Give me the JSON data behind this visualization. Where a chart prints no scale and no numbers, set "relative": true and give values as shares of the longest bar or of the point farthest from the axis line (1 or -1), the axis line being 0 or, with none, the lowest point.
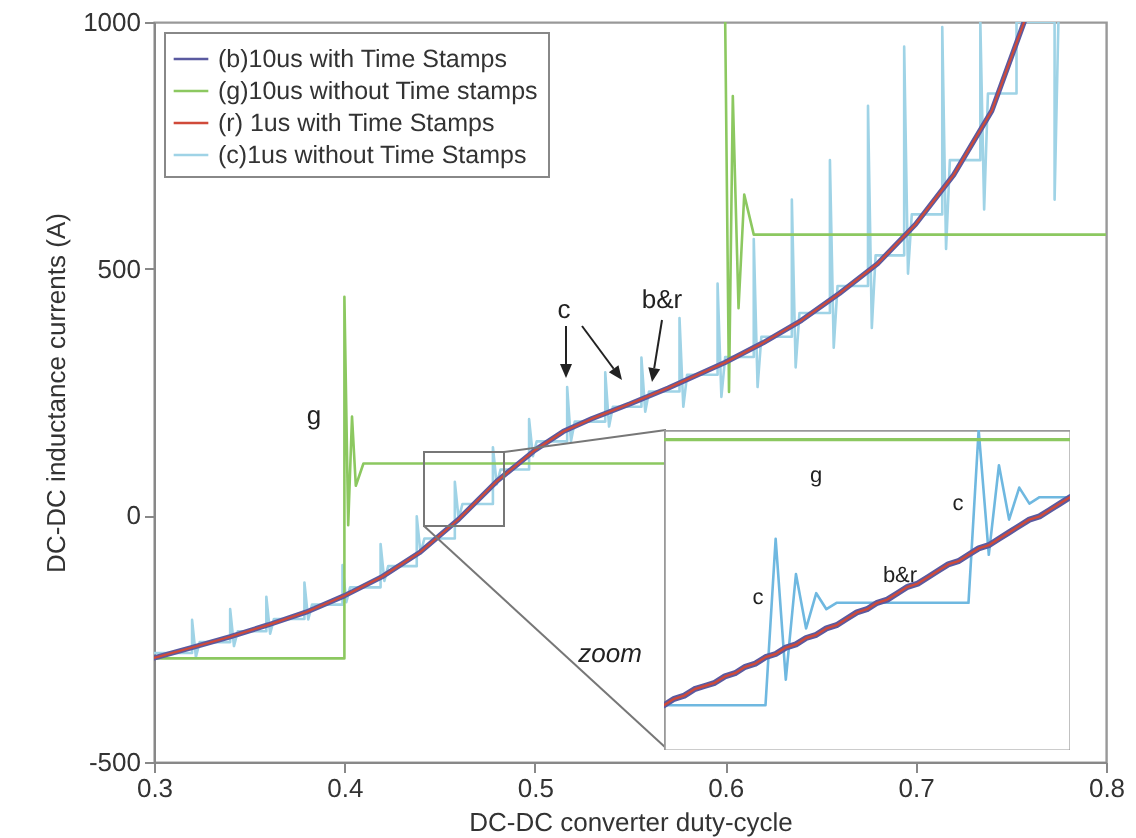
{
  "chart_data": [
    {
      "type": "line",
      "xlabel": "DC-DC converter duty-cycle",
      "ylabel": "DC-DC inductance currents (A)",
      "xlim": [
        0.3,
        0.8
      ],
      "ylim": [
        -500,
        1000
      ],
      "xticks": [
        0.3,
        0.4,
        0.5,
        0.6,
        0.7,
        0.8
      ],
      "yticks": [
        -500,
        0,
        500,
        1000
      ],
      "legend": "top left",
      "series": [
        {
          "name": "(b)10us with Time Stamps",
          "color": "#5a5aa0",
          "x": [
            0.3,
            0.32,
            0.34,
            0.36,
            0.38,
            0.4,
            0.42,
            0.44,
            0.46,
            0.48,
            0.5,
            0.515,
            0.53,
            0.55,
            0.57,
            0.6,
            0.62,
            0.64,
            0.66,
            0.68,
            0.7,
            0.72,
            0.74,
            0.757
          ],
          "values": [
            -289,
            -268,
            -246,
            -222,
            -196,
            -163,
            -124,
            -74,
            -8,
            69,
            132,
            170,
            196,
            226,
            258,
            310,
            350,
            395,
            450,
            510,
            590,
            690,
            820,
            1000
          ]
        },
        {
          "name": "(g)10us without Time stamps",
          "color": "#8cc860",
          "x": [
            0.3,
            0.4,
            0.4,
            0.402,
            0.404,
            0.406,
            0.41,
            0.568,
            0.584,
            0.6,
            0.602,
            0.604,
            0.607,
            0.61,
            0.615,
            0.8
          ],
          "values": [
            -290,
            -290,
            443,
            -20,
            200,
            60,
            105,
            105,
            null,
            1000,
            250,
            850,
            420,
            650,
            569,
            569
          ]
        },
        {
          "name": "(r) 1us with Time Stamps",
          "color": "#d04a3a",
          "x": [
            0.3,
            0.32,
            0.34,
            0.36,
            0.38,
            0.4,
            0.42,
            0.44,
            0.46,
            0.48,
            0.5,
            0.515,
            0.53,
            0.55,
            0.57,
            0.6,
            0.62,
            0.64,
            0.66,
            0.68,
            0.7,
            0.72,
            0.74,
            0.757
          ],
          "values": [
            -289,
            -268,
            -246,
            -222,
            -196,
            -163,
            -124,
            -74,
            -8,
            69,
            132,
            170,
            196,
            226,
            258,
            310,
            350,
            395,
            450,
            510,
            590,
            690,
            820,
            1000
          ]
        },
        {
          "name": "(c)1us without Time Stamps",
          "color": "#9fd3e6",
          "x": [
            0.3,
            0.32,
            0.32,
            0.322,
            0.324,
            0.34,
            0.34,
            0.342,
            0.344,
            0.359,
            0.359,
            0.361,
            0.363,
            0.379,
            0.379,
            0.381,
            0.383,
            0.399,
            0.399,
            0.401,
            0.403,
            0.419,
            0.419,
            0.421,
            0.423,
            0.438,
            0.438,
            0.44,
            0.442,
            0.458,
            0.458,
            0.46,
            0.462,
            0.478,
            0.478,
            0.48,
            0.482,
            0.497,
            0.497,
            0.499,
            0.501,
            0.517,
            0.517,
            0.519,
            0.521,
            0.537,
            0.537,
            0.539,
            0.541,
            0.556,
            0.556,
            0.558,
            0.56,
            0.576,
            0.576,
            0.578,
            0.58,
            0.596,
            0.596,
            0.598,
            0.6,
            0.615,
            0.615,
            0.617,
            0.619,
            0.635,
            0.635,
            0.637,
            0.639,
            0.655,
            0.655,
            0.657,
            0.659,
            0.675,
            0.675,
            0.677,
            0.679,
            0.694,
            0.694,
            0.696,
            0.698,
            0.714,
            0.714,
            0.716,
            0.718,
            0.734,
            0.734,
            0.736,
            0.738,
            0.753,
            0.753,
            0.773,
            0.773,
            0.775
          ],
          "values": [
            -279,
            -279,
            -212,
            -287,
            -257,
            -257,
            -190,
            -265,
            -235,
            -235,
            -165,
            -240,
            -210,
            -210,
            -136,
            -211,
            -181,
            -181,
            -101,
            -176,
            -146,
            -146,
            -58,
            -133,
            -103,
            -103,
            -2,
            -77,
            -47,
            -47,
            68,
            -7,
            23,
            23,
            138,
            63,
            93,
            93,
            195,
            120,
            150,
            150,
            260,
            150,
            190,
            190,
            290,
            180,
            220,
            220,
            320,
            210,
            251,
            251,
            400,
            220,
            285,
            285,
            470,
            240,
            321,
            321,
            560,
            260,
            362,
            362,
            640,
            300,
            410,
            410,
            720,
            340,
            465,
            465,
            830,
            380,
            527,
            527,
            950,
            490,
            610,
            610,
            990,
            540,
            720,
            720,
            1000,
            620,
            855,
            855,
            1000,
            1000,
            640,
            1000
          ]
        }
      ],
      "annotations": [
        "g",
        "c",
        "b&r",
        "zoom"
      ]
    },
    {
      "type": "line",
      "relative": true,
      "categories": [
        null,
        null,
        null,
        null,
        null,
        null,
        null,
        null,
        null,
        null,
        null,
        null,
        null,
        null,
        null,
        null,
        null,
        null,
        null,
        null,
        null,
        null,
        null,
        null,
        null,
        null,
        null,
        null,
        null,
        null,
        null,
        null,
        null,
        null,
        null,
        null,
        null,
        null,
        null,
        null,
        null
      ],
      "series": [
        {
          "color": "#5a5aa0",
          "values": [
            0.14,
            0.16,
            0.17,
            0.19,
            0.2,
            0.21,
            0.23,
            0.24,
            0.26,
            0.27,
            0.29,
            0.3,
            0.32,
            0.33,
            0.35,
            0.36,
            0.38,
            0.39,
            0.41,
            0.43,
            0.44,
            0.46,
            0.47,
            0.49,
            0.51,
            0.52,
            0.54,
            0.56,
            0.58,
            0.59,
            0.61,
            0.63,
            0.64,
            0.66,
            0.68,
            0.7,
            0.72,
            0.73,
            0.75,
            0.77,
            0.79
          ]
        },
        {
          "color": "#8cc860",
          "values": [
            0.97,
            0.97,
            0.97,
            0.97,
            0.97,
            0.97,
            0.97,
            0.97,
            0.97,
            0.97,
            0.97,
            0.97,
            0.97,
            0.97,
            0.97,
            0.97,
            0.97,
            0.97,
            0.97,
            0.97,
            0.97,
            0.97,
            0.97,
            0.97,
            0.97,
            0.97,
            0.97,
            0.97,
            0.97,
            0.97,
            0.97,
            0.97,
            0.97,
            0.97,
            0.97,
            0.97,
            0.97,
            0.97,
            0.97,
            0.97,
            0.97
          ]
        },
        {
          "color": "#d04a3a",
          "values": [
            0.14,
            0.16,
            0.17,
            0.19,
            0.2,
            0.21,
            0.23,
            0.24,
            0.26,
            0.27,
            0.29,
            0.3,
            0.32,
            0.33,
            0.35,
            0.36,
            0.38,
            0.39,
            0.41,
            0.43,
            0.44,
            0.46,
            0.47,
            0.49,
            0.51,
            0.52,
            0.54,
            0.56,
            0.58,
            0.59,
            0.61,
            0.63,
            0.64,
            0.66,
            0.68,
            0.7,
            0.72,
            0.73,
            0.75,
            0.77,
            0.79
          ]
        },
        {
          "color": "#6fb8e0",
          "values": [
            0.14,
            0.14,
            0.14,
            0.14,
            0.14,
            0.14,
            0.14,
            0.14,
            0.14,
            0.14,
            0.14,
            0.66,
            0.22,
            0.55,
            0.38,
            0.49,
            0.44,
            0.46,
            0.46,
            0.46,
            0.46,
            0.46,
            0.46,
            0.46,
            0.46,
            0.46,
            0.46,
            0.46,
            0.46,
            0.46,
            0.46,
            1,
            0.61,
            0.89,
            0.72,
            0.82,
            0.77,
            0.79,
            0.79,
            0.79,
            0.79
          ]
        }
      ],
      "annotations": [
        "g",
        "c",
        "c",
        "b&r"
      ]
    }
  ]
}
